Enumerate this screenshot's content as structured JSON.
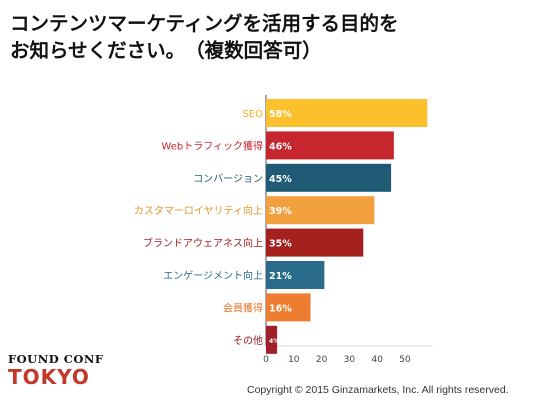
{
  "title": {
    "line1": "コンテンツマーケティングを活用する目的を",
    "line2": "お知らせください。　（複数回答可）"
  },
  "chart_data": {
    "type": "bar",
    "orientation": "horizontal",
    "categories": [
      "SEO",
      "Webトラフィック獲得",
      "コンバージョン",
      "カスタマーロイヤリティ向上",
      "ブランドアウェアネス向上",
      "エンゲージメント向上",
      "会員獲得",
      "その他"
    ],
    "values": [
      58,
      46,
      45,
      39,
      35,
      21,
      16,
      4
    ],
    "value_labels": [
      "58%",
      "46%",
      "45%",
      "39%",
      "35%",
      "21%",
      "16%",
      "4%"
    ],
    "colors": [
      "#fcc02c",
      "#c6262e",
      "#1f5b74",
      "#f2a03d",
      "#a3201f",
      "#2b6c8c",
      "#ee7d31",
      "#a0202a"
    ],
    "label_colors": [
      "#f2b11b",
      "#c6262e",
      "#1f5b74",
      "#e8952b",
      "#a3201f",
      "#2b6c8c",
      "#e8752a",
      "#a0202a"
    ],
    "x_ticks": [
      "0",
      "10",
      "20",
      "30",
      "40",
      "50"
    ],
    "xlim": [
      0,
      60
    ],
    "grid": false,
    "legend": "none"
  },
  "logo": {
    "line1": "FOUND CONF",
    "line2": "TOKYO"
  },
  "copyright": "Copyright © 2015 Ginzamarkets, Inc. All rights reserved."
}
